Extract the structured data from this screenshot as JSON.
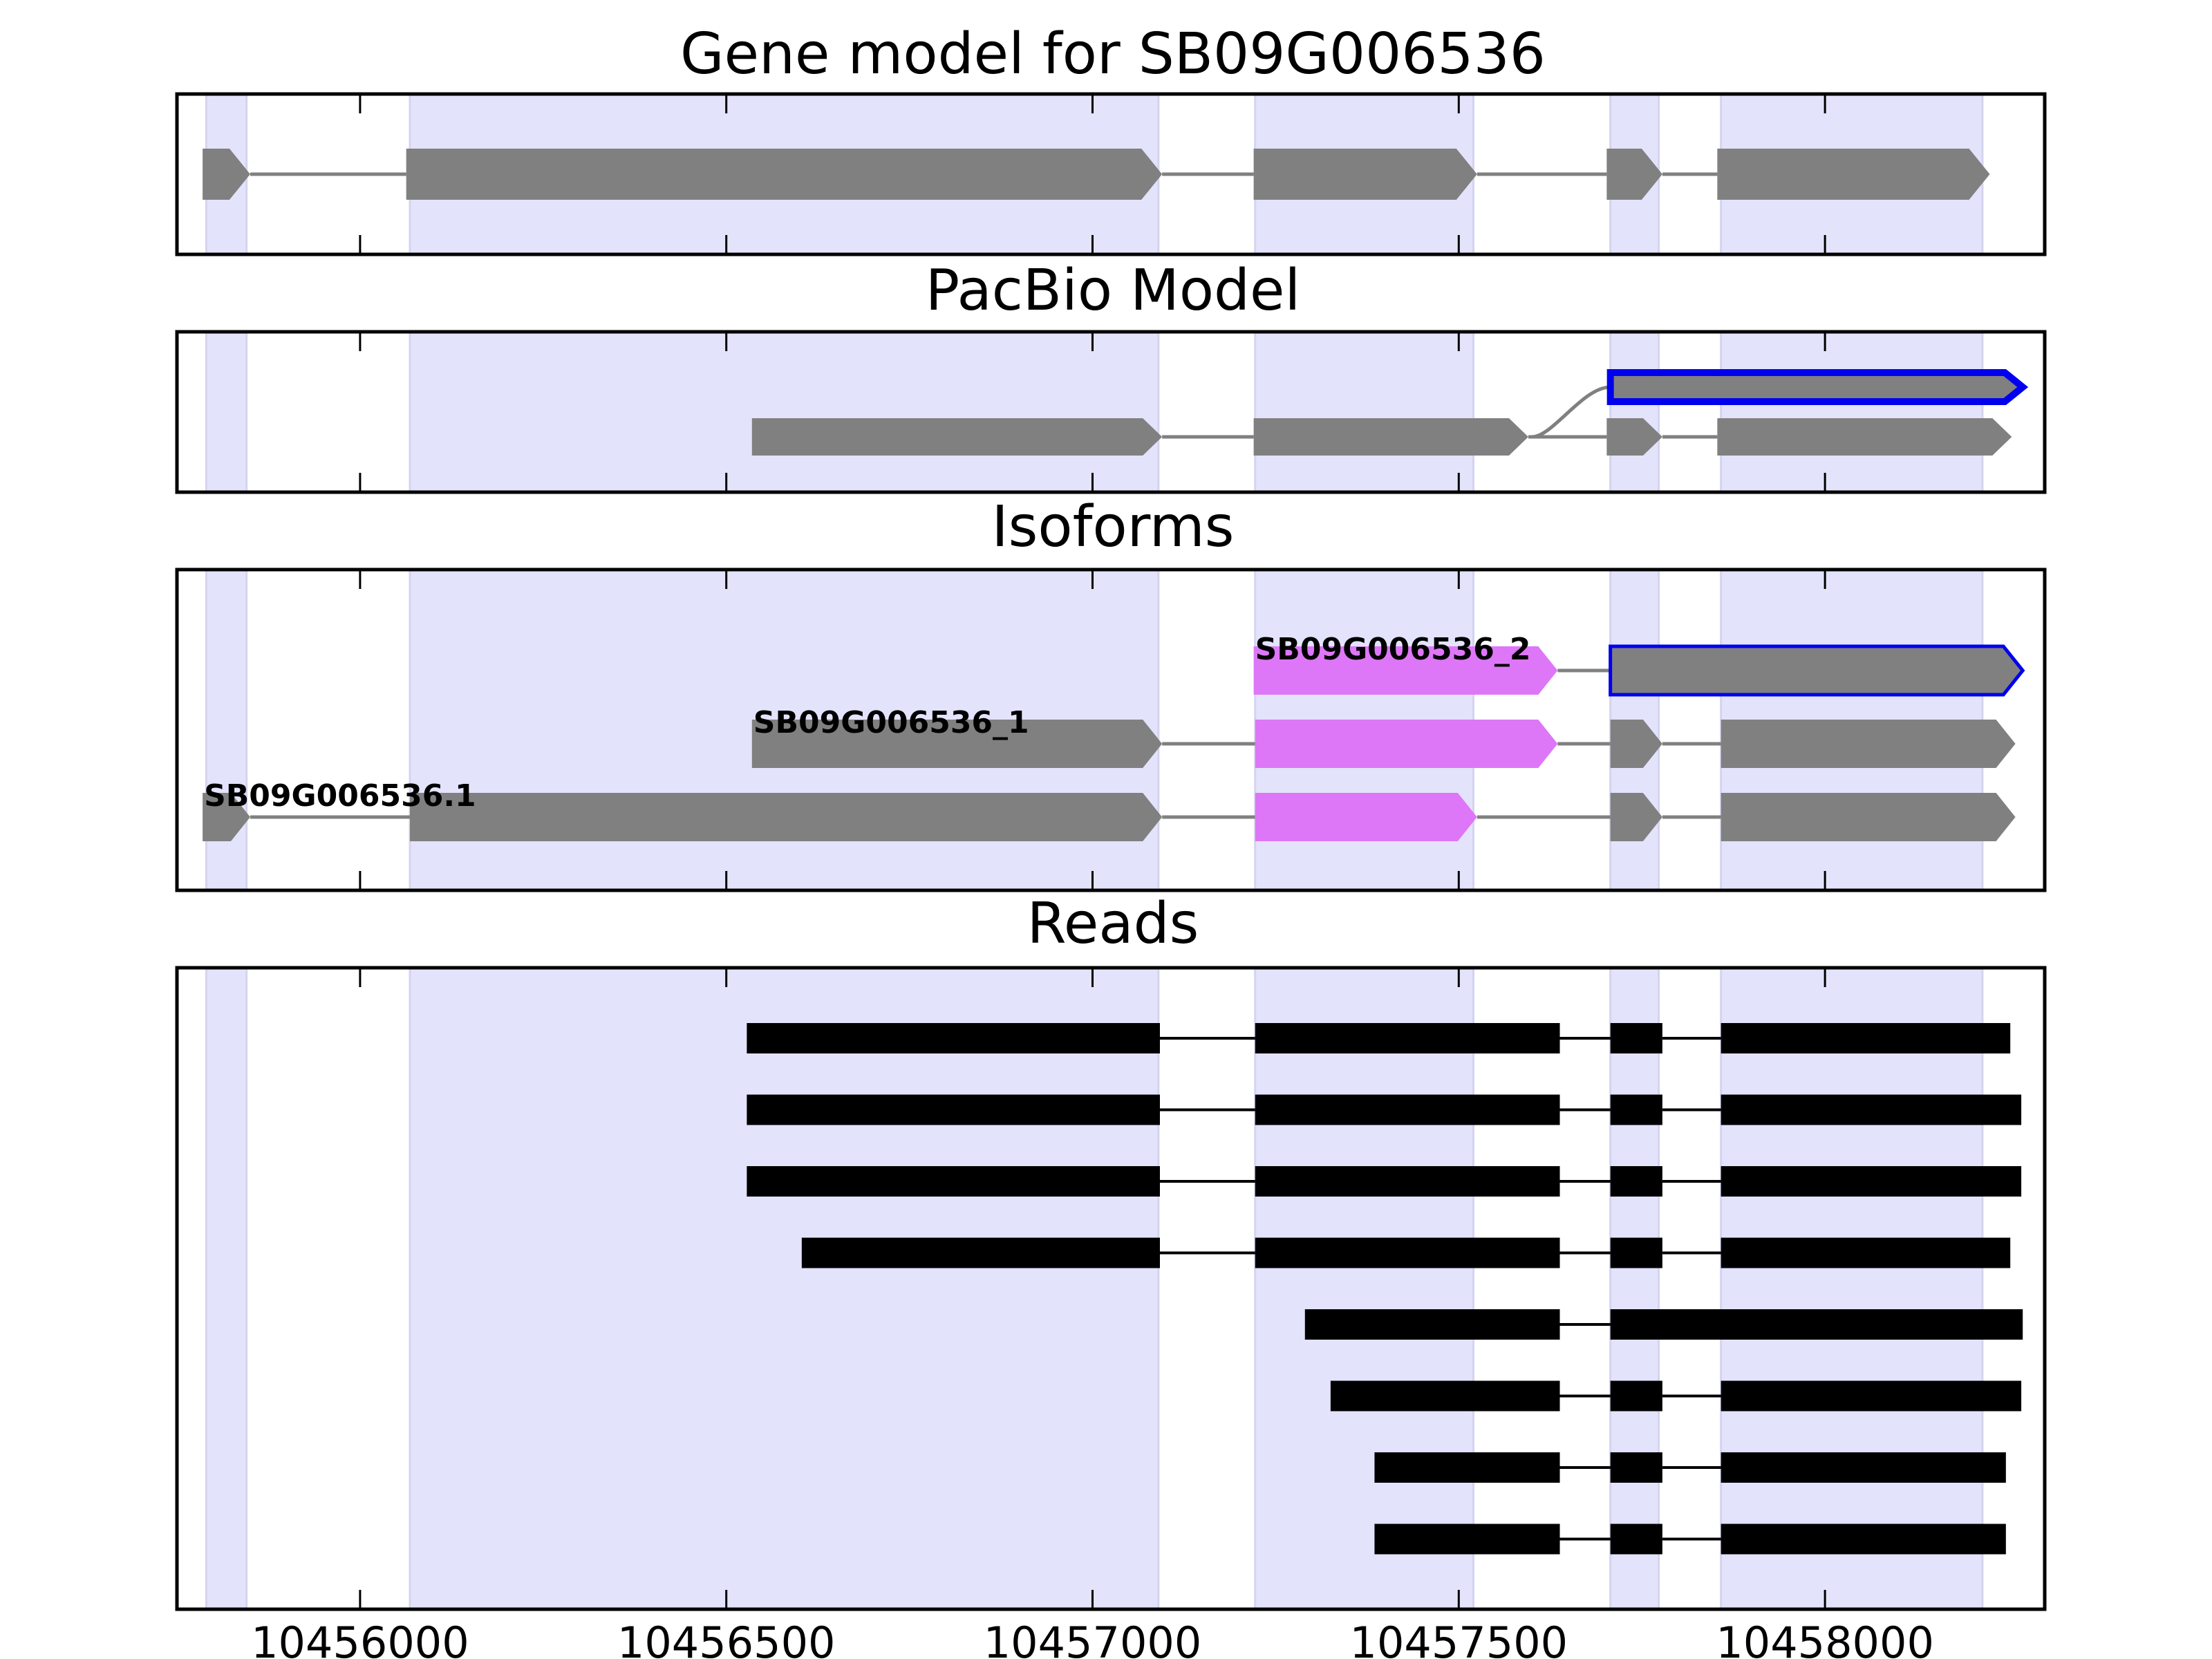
{
  "colors": {
    "highlight": "#e3e3fc",
    "highlight_edge": "#d4d4f0",
    "gene_gray": "#808080",
    "intron": "#808080",
    "selected_outline": "#0000ee",
    "isoform_magenta": "#dd77f7",
    "read_black": "#000000"
  },
  "panels": {
    "gene_model": {
      "title": "Gene model for SB09G006536"
    },
    "pacbio": {
      "title": "PacBio Model"
    },
    "isoforms": {
      "title": "Isoforms"
    },
    "reads": {
      "title": "Reads"
    }
  },
  "chart_data": {
    "type": "gene_structure",
    "x_axis": {
      "range": [
        10455750,
        10458300
      ],
      "ticks": [
        10456000,
        10456500,
        10457000,
        10457500,
        10458000
      ],
      "tick_labels": [
        "10456000",
        "10456500",
        "10457000",
        "10457500",
        "10458000"
      ]
    },
    "highlight_regions": [
      [
        10455790,
        10455845
      ],
      [
        10456068,
        10457090
      ],
      [
        10457222,
        10457520
      ],
      [
        10457707,
        10457773
      ],
      [
        10457858,
        10458215
      ]
    ],
    "gene_model": {
      "exons": [
        [
          10455785,
          10455850
        ],
        [
          10456063,
          10457095
        ],
        [
          10457220,
          10457525
        ],
        [
          10457702,
          10457778
        ],
        [
          10457853,
          10458225
        ]
      ],
      "strand": "+"
    },
    "pacbio_models": [
      {
        "exons": [
          [
            10457707,
            10458270
          ]
        ],
        "selected": true,
        "junction_from": 10457600
      },
      {
        "exons": [
          [
            10456535,
            10457095
          ],
          [
            10457220,
            10457595
          ],
          [
            10457702,
            10457778
          ],
          [
            10457853,
            10458255
          ]
        ],
        "selected": false
      }
    ],
    "isoforms": [
      {
        "name": "SB09G006536_2",
        "exons": [
          [
            10457220,
            10457635
          ],
          [
            10457707,
            10458270
          ]
        ],
        "exon_colors": [
          "magenta",
          "gray-selected"
        ]
      },
      {
        "name": "SB09G006536_1",
        "exons": [
          [
            10456535,
            10457095
          ],
          [
            10457222,
            10457635
          ],
          [
            10457707,
            10457778
          ],
          [
            10457858,
            10458260
          ]
        ],
        "exon_colors": [
          "gray",
          "magenta",
          "gray",
          "gray"
        ]
      },
      {
        "name": "SB09G006536.1",
        "exons": [
          [
            10455785,
            10455850
          ],
          [
            10456068,
            10457095
          ],
          [
            10457222,
            10457525
          ],
          [
            10457707,
            10457778
          ],
          [
            10457858,
            10458260
          ]
        ],
        "exon_colors": [
          "gray",
          "gray",
          "magenta",
          "gray",
          "gray"
        ]
      }
    ],
    "reads": [
      {
        "exons": [
          [
            10456528,
            10457092
          ],
          [
            10457222,
            10457638
          ],
          [
            10457707,
            10457778
          ],
          [
            10457858,
            10458253
          ]
        ]
      },
      {
        "exons": [
          [
            10456528,
            10457092
          ],
          [
            10457222,
            10457638
          ],
          [
            10457707,
            10457778
          ],
          [
            10457858,
            10458268
          ]
        ]
      },
      {
        "exons": [
          [
            10456528,
            10457092
          ],
          [
            10457222,
            10457638
          ],
          [
            10457707,
            10457778
          ],
          [
            10457858,
            10458268
          ]
        ]
      },
      {
        "exons": [
          [
            10456603,
            10457092
          ],
          [
            10457222,
            10457638
          ],
          [
            10457707,
            10457778
          ],
          [
            10457858,
            10458253
          ]
        ]
      },
      {
        "exons": [
          [
            10457290,
            10457638
          ],
          [
            10457707,
            10458270
          ]
        ]
      },
      {
        "exons": [
          [
            10457325,
            10457638
          ],
          [
            10457707,
            10457778
          ],
          [
            10457858,
            10458268
          ]
        ]
      },
      {
        "exons": [
          [
            10457385,
            10457638
          ],
          [
            10457707,
            10457778
          ],
          [
            10457858,
            10458247
          ]
        ]
      },
      {
        "exons": [
          [
            10457385,
            10457638
          ],
          [
            10457707,
            10457778
          ],
          [
            10457858,
            10458247
          ]
        ]
      }
    ]
  }
}
